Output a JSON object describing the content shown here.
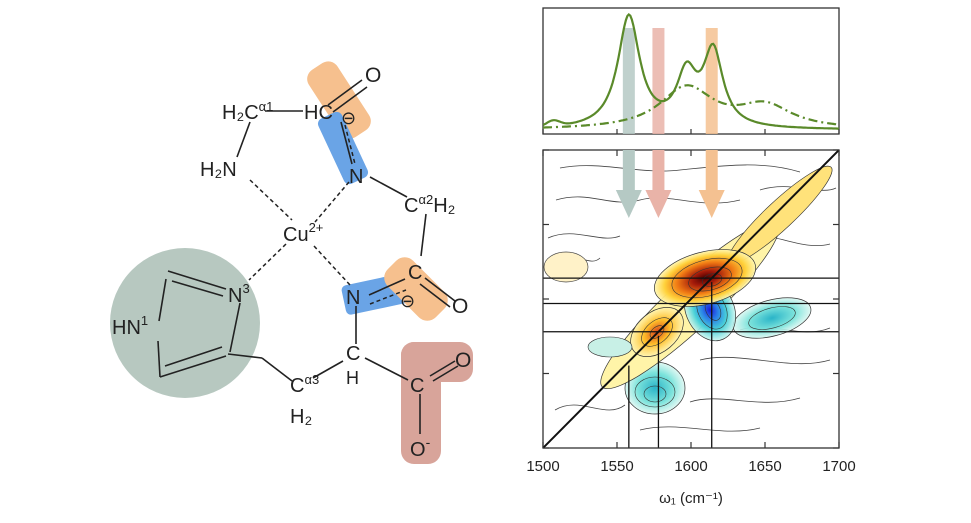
{
  "molecule": {
    "atoms": {
      "h2c_a1": "H₂C",
      "a1": "α1",
      "hc": "HC",
      "o_top": "O",
      "h2n": "H₂N",
      "n_upper": "N",
      "c_a2": "C",
      "a2": "α2",
      "h2_right": "H₂",
      "cu": "Cu",
      "cu_charge": "2+",
      "n3": "N",
      "n3_sup": "3",
      "hn1": "HN",
      "hn1_sup": "1",
      "n_lower": "N",
      "c_carbonyl": "C",
      "o_mid": "O",
      "c_lower": "C",
      "h_lower": "H",
      "c_a3": "C",
      "a3": "α3",
      "h2_lower": "H₂",
      "c_carboxyl": "C",
      "o_carboxyl": "O",
      "o_minus": "O",
      "o_minus_sup": "-"
    },
    "charges": [
      "⊖",
      "⊖"
    ],
    "colors": {
      "amide_orange": "#f6c08e",
      "amide_blue": "#6aa4e6",
      "carboxyl_red": "#d8a49a",
      "imidazole_circle": "#b7c8c0"
    }
  },
  "chart_data": {
    "type": "2d-ir-contour",
    "top_spectrum": {
      "series": [
        {
          "style": "solid",
          "color": "#5a8a2a",
          "peaks": [
            {
              "x": 1558,
              "h": 1.0
            },
            {
              "x": 1597,
              "h": 0.45
            },
            {
              "x": 1615,
              "h": 0.67
            }
          ]
        },
        {
          "style": "dash-dot",
          "color": "#5a8a2a",
          "peaks": [
            {
              "x": 1597,
              "h": 0.37
            },
            {
              "x": 1650,
              "h": 0.2
            }
          ]
        }
      ]
    },
    "arrows": [
      {
        "x": 1558,
        "color": "#b5c9c4"
      },
      {
        "x": 1578,
        "color": "#e9b3a8"
      },
      {
        "x": 1614,
        "color": "#f4c191"
      }
    ],
    "vlines": [
      1558,
      1578,
      1614
    ],
    "hlines": [
      1614,
      1597,
      1578
    ],
    "xlabel": "ω₁ (cm⁻¹)",
    "xticks": [
      1500,
      1550,
      1600,
      1650,
      1700
    ],
    "xlim": [
      1500,
      1700
    ],
    "ylim": [
      1500,
      1700
    ]
  }
}
